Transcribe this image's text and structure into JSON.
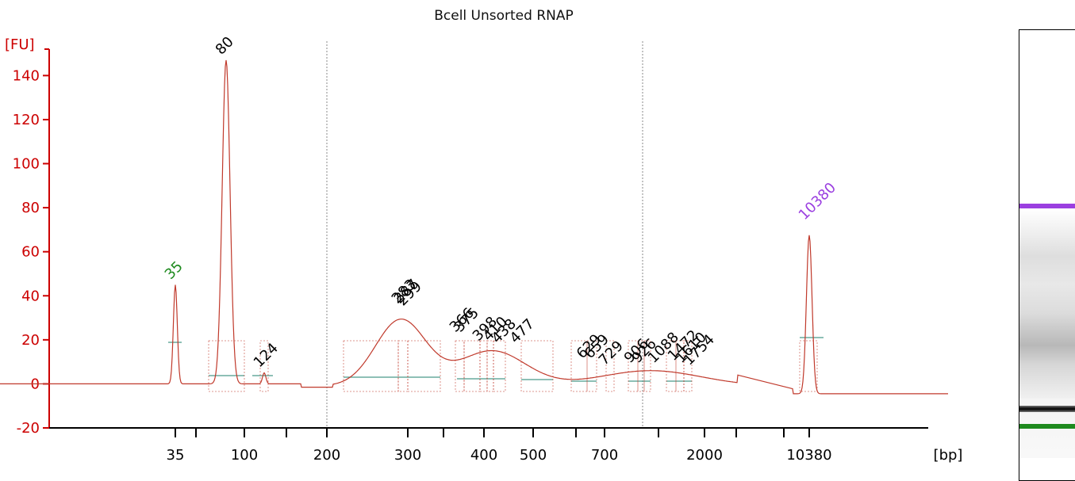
{
  "title": "Bcell Unsorted RNAP",
  "chart_data": {
    "type": "line",
    "title": "Bcell Unsorted RNAP",
    "ylabel": "[FU]",
    "xlabel": "[bp]",
    "ylim": [
      -20,
      150
    ],
    "y_ticks": [
      -20,
      0,
      20,
      40,
      60,
      80,
      100,
      120,
      140
    ],
    "x_tick_labels": [
      "35",
      "100",
      "200",
      "300",
      "400",
      "500",
      "700",
      "2000",
      "10380"
    ],
    "series": [
      {
        "x": [
          "35",
          "80",
          "124",
          "283",
          "287",
          "299",
          "366",
          "375",
          "398",
          "410",
          "438",
          "477",
          "629",
          "659",
          "729",
          "906",
          "926",
          "1088",
          "1472",
          "1610",
          "1754",
          "10380"
        ],
        "values": [
          45,
          147,
          5,
          34,
          34,
          33,
          21,
          21,
          17,
          17,
          16,
          16,
          9,
          9,
          6,
          7,
          7,
          7,
          8,
          7,
          6,
          72
        ]
      }
    ],
    "peak_labels": [
      {
        "text": "35",
        "color": "#1e8a1e"
      },
      {
        "text": "80",
        "color": "#000000"
      },
      {
        "text": "124",
        "color": "#000000"
      },
      {
        "text": "283",
        "color": "#000000"
      },
      {
        "text": "287",
        "color": "#000000"
      },
      {
        "text": "299",
        "color": "#000000"
      },
      {
        "text": "366",
        "color": "#000000"
      },
      {
        "text": "375",
        "color": "#000000"
      },
      {
        "text": "398",
        "color": "#000000"
      },
      {
        "text": "410",
        "color": "#000000"
      },
      {
        "text": "438",
        "color": "#000000"
      },
      {
        "text": "477",
        "color": "#000000"
      },
      {
        "text": "629",
        "color": "#000000"
      },
      {
        "text": "659",
        "color": "#000000"
      },
      {
        "text": "729",
        "color": "#000000"
      },
      {
        "text": "906",
        "color": "#000000"
      },
      {
        "text": "926",
        "color": "#000000"
      },
      {
        "text": "1088",
        "color": "#000000"
      },
      {
        "text": "1472",
        "color": "#000000"
      },
      {
        "text": "1610",
        "color": "#000000"
      },
      {
        "text": "1754",
        "color": "#000000"
      },
      {
        "text": "10380",
        "color": "#9b3fe0"
      }
    ],
    "grid": false,
    "colors": {
      "axis": "#cc0000",
      "trace": "#c0392b",
      "baseline": "#4a9a8a",
      "lower_marker": "#1e8a1e",
      "upper_marker": "#9b3fe0"
    }
  }
}
